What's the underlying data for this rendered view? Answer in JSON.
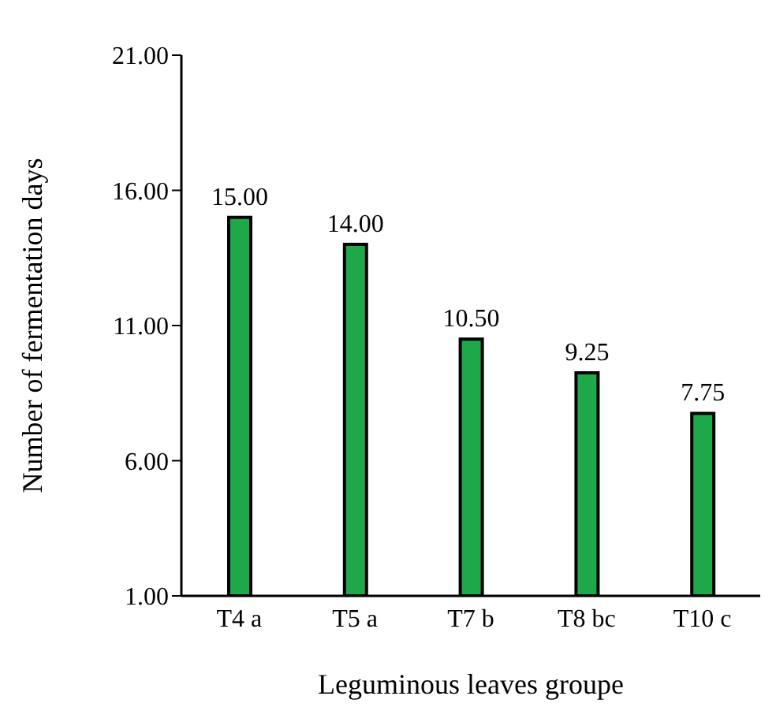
{
  "chart_data": {
    "type": "bar",
    "xlabel": "Leguminous leaves groupe",
    "ylabel": "Number of fermentation days",
    "categories": [
      "T4 a",
      "T5 a",
      "T7 b",
      "T8 bc",
      "T10 c"
    ],
    "values": [
      15,
      14,
      10.5,
      9.25,
      7.75
    ],
    "value_labels": [
      "15.00",
      "14.00",
      "10.50",
      "9.25",
      "7.75"
    ],
    "color": "#1fa84a",
    "ylim": [
      1,
      21
    ],
    "yticks": [
      {
        "value": 1,
        "label": "1.00"
      },
      {
        "value": 6,
        "label": "6.00"
      },
      {
        "value": 11,
        "label": "11.00"
      },
      {
        "value": 16,
        "label": "16.00"
      },
      {
        "value": 21,
        "label": "21.00"
      }
    ],
    "grid": false,
    "legend": false
  }
}
